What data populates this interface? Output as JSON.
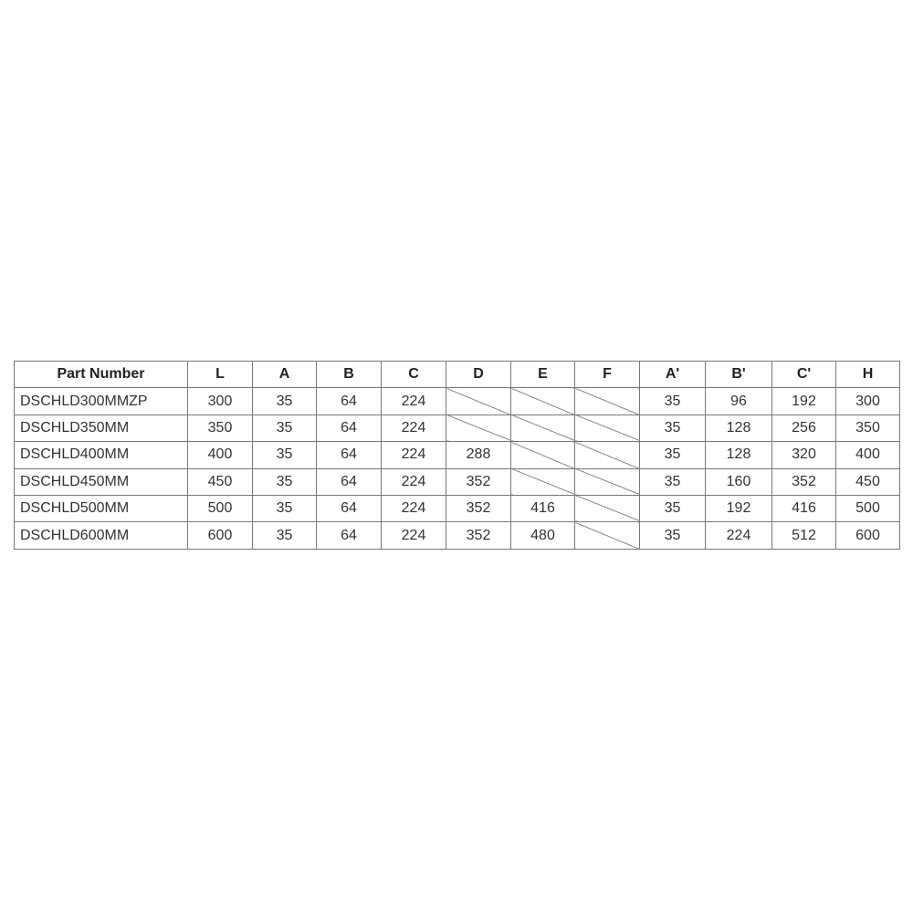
{
  "table": {
    "headers": [
      "Part Number",
      "L",
      "A",
      "B",
      "C",
      "D",
      "E",
      "F",
      "A'",
      "B'",
      "C'",
      "H"
    ],
    "rows": [
      [
        "DSCHLD300MMZP",
        "300",
        "35",
        "64",
        "224",
        null,
        null,
        null,
        "35",
        "96",
        "192",
        "300"
      ],
      [
        "DSCHLD350MM",
        "350",
        "35",
        "64",
        "224",
        null,
        null,
        null,
        "35",
        "128",
        "256",
        "350"
      ],
      [
        "DSCHLD400MM",
        "400",
        "35",
        "64",
        "224",
        "288",
        null,
        null,
        "35",
        "128",
        "320",
        "400"
      ],
      [
        "DSCHLD450MM",
        "450",
        "35",
        "64",
        "224",
        "352",
        null,
        null,
        "35",
        "160",
        "352",
        "450"
      ],
      [
        "DSCHLD500MM",
        "500",
        "35",
        "64",
        "224",
        "352",
        "416",
        null,
        "35",
        "192",
        "416",
        "500"
      ],
      [
        "DSCHLD600MM",
        "600",
        "35",
        "64",
        "224",
        "352",
        "480",
        null,
        "35",
        "224",
        "512",
        "600"
      ]
    ]
  }
}
